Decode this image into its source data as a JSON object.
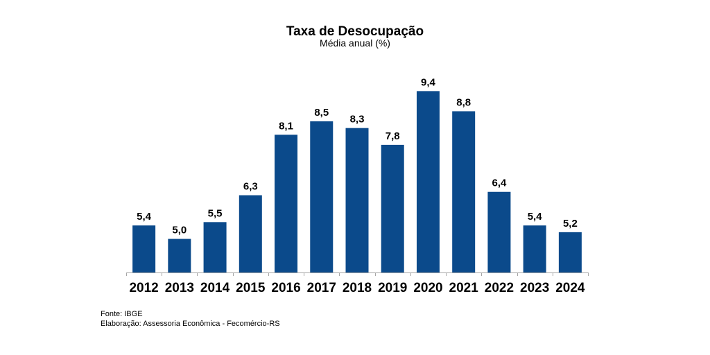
{
  "chart_data": {
    "type": "bar",
    "title": "Taxa de Desocupação",
    "subtitle": "Média anual (%)",
    "xlabel": "",
    "ylabel": "",
    "categories": [
      "2012",
      "2013",
      "2014",
      "2015",
      "2016",
      "2017",
      "2018",
      "2019",
      "2020",
      "2021",
      "2022",
      "2023",
      "2024"
    ],
    "values": [
      5.4,
      5.0,
      5.5,
      6.3,
      8.1,
      8.5,
      8.3,
      7.8,
      9.4,
      8.8,
      6.4,
      5.4,
      5.2
    ],
    "data_labels": [
      "5,4",
      "5,0",
      "5,5",
      "6,3",
      "8,1",
      "8,5",
      "8,3",
      "7,8",
      "9,4",
      "8,8",
      "6,4",
      "5,4",
      "5,2"
    ],
    "ylim": [
      4,
      9.8
    ],
    "grid": false,
    "legend": "none",
    "bar_color": "#0b4a8b",
    "axis_color": "#a6a6a6"
  },
  "footer": {
    "source": "Fonte: IBGE",
    "credit": "Elaboração: Assessoria Econômica - Fecomércio-RS"
  }
}
